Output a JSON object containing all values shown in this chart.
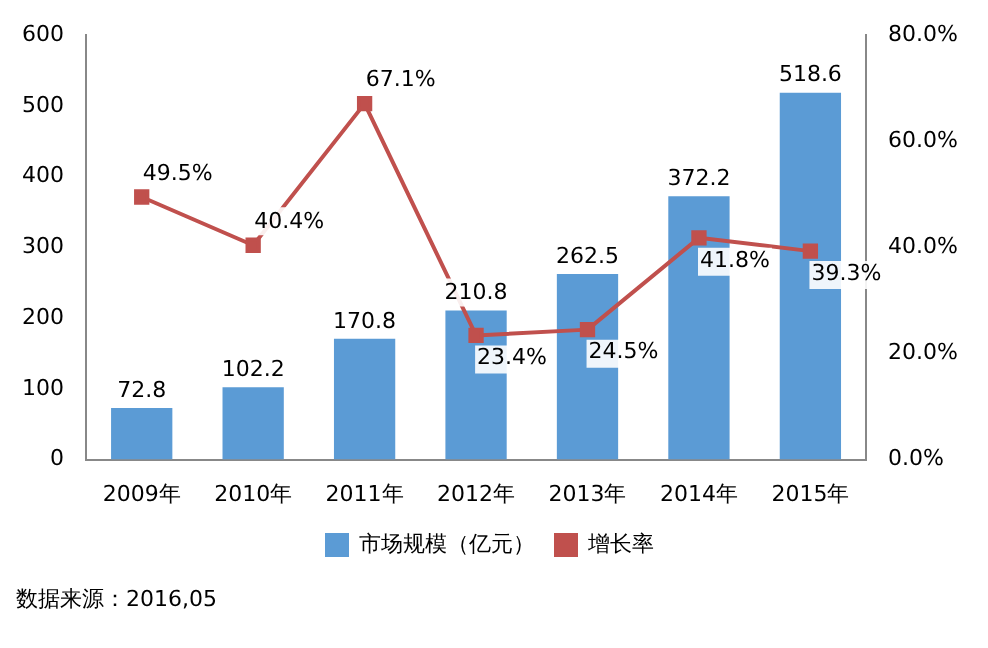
{
  "chart_data": {
    "type": "bar",
    "categories": [
      "2009年",
      "2010年",
      "2011年",
      "2012年",
      "2013年",
      "2014年",
      "2015年"
    ],
    "series": [
      {
        "name": "市场规模（亿元）",
        "color": "#5b9bd5",
        "values": [
          72.8,
          102.2,
          170.8,
          210.8,
          262.5,
          372.2,
          518.6
        ],
        "value_labels": [
          "72.8",
          "102.2",
          "170.8",
          "210.8",
          "262.5",
          "372.2",
          "518.6"
        ]
      },
      {
        "name": "增长率",
        "type": "line",
        "axis": "y2",
        "color": "#c0504d",
        "marker": "square",
        "values": [
          49.5,
          40.4,
          67.1,
          23.4,
          24.5,
          41.8,
          39.3
        ],
        "value_labels": [
          "49.5%",
          "40.4%",
          "67.1%",
          "23.4%",
          "24.5%",
          "41.8%",
          "39.3%"
        ]
      }
    ],
    "ylim": [
      0,
      600
    ],
    "yticks": [
      0,
      100,
      200,
      300,
      400,
      500,
      600
    ],
    "y2lim": [
      0,
      80
    ],
    "y2ticks": [
      {
        "value": 0,
        "label": "0.0%"
      },
      {
        "value": 20,
        "label": "20.0%"
      },
      {
        "value": 40,
        "label": "40.0%"
      },
      {
        "value": 60,
        "label": "60.0%"
      },
      {
        "value": 80,
        "label": "80.0%"
      }
    ],
    "grid": false,
    "legend": "bottom",
    "annotations": [
      "数据来源：2016,05"
    ]
  }
}
